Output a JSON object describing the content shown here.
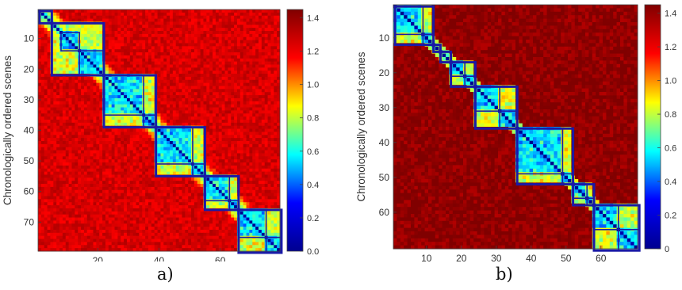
{
  "colormap": {
    "name": "jet",
    "stops": [
      "#00008f",
      "#0000ff",
      "#00ffff",
      "#ffff00",
      "#ff0000",
      "#800000"
    ]
  },
  "chart_data": [
    {
      "type": "heatmap",
      "panel_label": "a)",
      "xlabel": "Chronologically ordered scenes",
      "ylabel": "Chronologically ordered scenes",
      "n": 79,
      "xlim": [
        1,
        79
      ],
      "ylim": [
        1,
        79
      ],
      "xticks": [
        20,
        40,
        60
      ],
      "yticks": [
        10,
        20,
        30,
        40,
        50,
        60,
        70
      ],
      "colorbar": {
        "ticks": [
          "0.0",
          "0.2",
          "0.4",
          "0.6",
          "0.8",
          "1.0",
          "1.2",
          "1.4"
        ],
        "range": [
          0,
          1.45
        ]
      },
      "base_value": 1.25,
      "diagonal_band": {
        "width": 6,
        "inner_value": 0.55
      },
      "boxes": [
        [
          1,
          4
        ],
        [
          5,
          21
        ],
        [
          22,
          38
        ],
        [
          39,
          54
        ],
        [
          55,
          65
        ],
        [
          66,
          79
        ]
      ],
      "sub_boxes": [
        [
          8,
          13
        ],
        [
          14,
          21
        ],
        [
          22,
          34
        ],
        [
          35,
          38
        ],
        [
          39,
          50
        ],
        [
          51,
          54
        ],
        [
          55,
          62
        ],
        [
          63,
          65
        ],
        [
          66,
          74
        ],
        [
          75,
          79
        ]
      ]
    },
    {
      "type": "heatmap",
      "panel_label": "b)",
      "xlabel": "Chronologically ordered scenes",
      "ylabel": "Chronologically ordered scenes",
      "n": 70,
      "xlim": [
        1,
        70
      ],
      "ylim": [
        1,
        70
      ],
      "xticks": [
        10,
        20,
        30,
        40,
        50,
        60
      ],
      "yticks": [
        10,
        20,
        30,
        40,
        50,
        60
      ],
      "colorbar": {
        "ticks": [
          "0",
          "0.2",
          "0.4",
          "0.6",
          "0.8",
          "1.0",
          "1.2",
          "1.4"
        ],
        "range": [
          0,
          1.45
        ]
      },
      "base_value": 1.42,
      "diagonal_band": {
        "width": 3,
        "inner_value": 0.6
      },
      "boxes": [
        [
          1,
          11
        ],
        [
          12,
          13
        ],
        [
          14,
          16
        ],
        [
          17,
          23
        ],
        [
          24,
          35
        ],
        [
          36,
          51
        ],
        [
          52,
          57
        ],
        [
          58,
          70
        ]
      ],
      "sub_boxes": [
        [
          1,
          8
        ],
        [
          9,
          11
        ],
        [
          17,
          20
        ],
        [
          21,
          23
        ],
        [
          24,
          30
        ],
        [
          31,
          35
        ],
        [
          36,
          48
        ],
        [
          49,
          51
        ],
        [
          52,
          55
        ],
        [
          56,
          57
        ],
        [
          58,
          64
        ],
        [
          65,
          70
        ]
      ]
    }
  ]
}
